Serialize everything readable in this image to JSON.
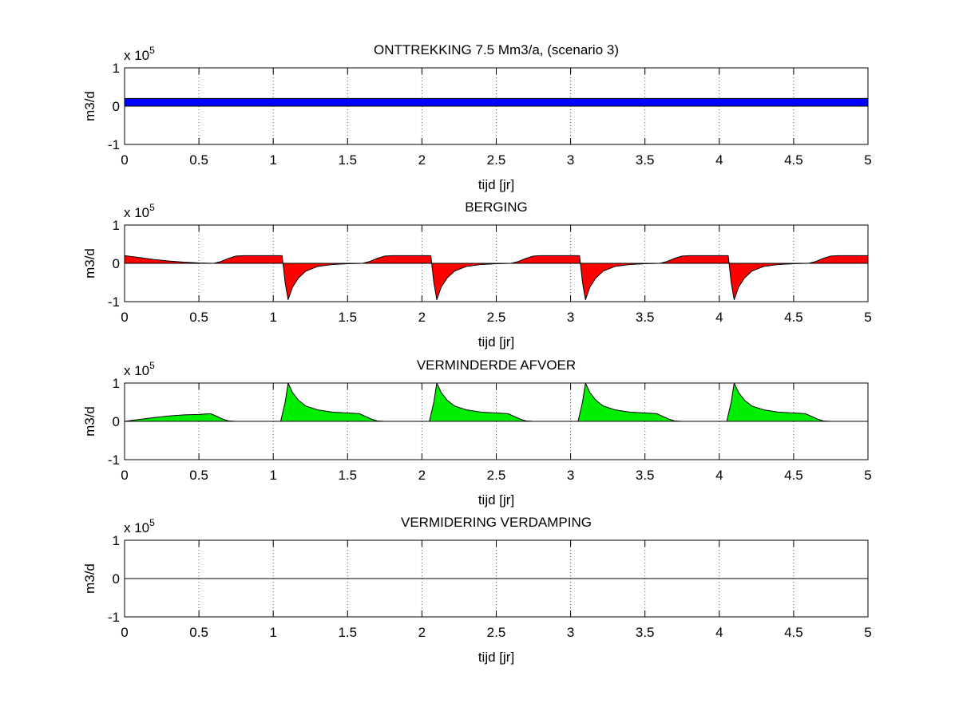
{
  "chart_data": [
    {
      "type": "area",
      "title": "ONTTREKKING 7.5 Mm3/a, (scenario 3)",
      "xlabel": "tijd [jr]",
      "ylabel": "m3/d",
      "y_multiplier": "x 10",
      "y_exponent": "5",
      "xlim": [
        0,
        5
      ],
      "ylim": [
        -1,
        1
      ],
      "xticks": [
        "0",
        "0.5",
        "1",
        "1.5",
        "2",
        "2.5",
        "3",
        "3.5",
        "4",
        "4.5",
        "5"
      ],
      "yticks": [
        "-1",
        "0",
        "1"
      ],
      "grid": true,
      "color": "#0000ff",
      "series": [
        {
          "x": [
            0,
            5,
            5,
            0
          ],
          "y": [
            0.2,
            0.2,
            0.0,
            0.0
          ]
        }
      ]
    },
    {
      "type": "area",
      "title": "BERGING",
      "xlabel": "tijd [jr]",
      "ylabel": "m3/d",
      "y_multiplier": "x 10",
      "y_exponent": "5",
      "xlim": [
        0,
        5
      ],
      "ylim": [
        -1,
        1
      ],
      "xticks": [
        "0",
        "0.5",
        "1",
        "1.5",
        "2",
        "2.5",
        "3",
        "3.5",
        "4",
        "4.5",
        "5"
      ],
      "yticks": [
        "-1",
        "0",
        "1"
      ],
      "grid": true,
      "color": "#ff0000",
      "series": [
        {
          "x": [
            0,
            0.1,
            0.2,
            0.3,
            0.4,
            0.5,
            0.6,
            0.65,
            0.7,
            0.75,
            0.8,
            0.9,
            1.0,
            1.06,
            1.08,
            1.1,
            1.13,
            1.17,
            1.22,
            1.3,
            1.4,
            1.5,
            1.6,
            1.65,
            1.7,
            1.75,
            1.8,
            1.9,
            2.0,
            2.06,
            2.08,
            2.1,
            2.13,
            2.17,
            2.22,
            2.3,
            2.4,
            2.5,
            2.6,
            2.65,
            2.7,
            2.75,
            2.8,
            2.9,
            3.0,
            3.06,
            3.08,
            3.1,
            3.13,
            3.17,
            3.22,
            3.3,
            3.4,
            3.5,
            3.6,
            3.65,
            3.7,
            3.75,
            3.8,
            3.9,
            4.0,
            4.06,
            4.08,
            4.1,
            4.13,
            4.17,
            4.22,
            4.3,
            4.4,
            4.5,
            4.6,
            4.65,
            4.7,
            4.75,
            4.8,
            4.9,
            5.0
          ],
          "y": [
            0.2,
            0.15,
            0.1,
            0.06,
            0.03,
            0.01,
            0.0,
            0.05,
            0.13,
            0.19,
            0.2,
            0.2,
            0.2,
            0.2,
            -0.5,
            -0.95,
            -0.62,
            -0.38,
            -0.2,
            -0.08,
            -0.03,
            -0.01,
            0.0,
            0.05,
            0.13,
            0.19,
            0.2,
            0.2,
            0.2,
            0.2,
            -0.5,
            -0.95,
            -0.62,
            -0.38,
            -0.2,
            -0.08,
            -0.03,
            -0.01,
            0.0,
            0.05,
            0.13,
            0.19,
            0.2,
            0.2,
            0.2,
            0.2,
            -0.5,
            -0.95,
            -0.62,
            -0.38,
            -0.2,
            -0.08,
            -0.03,
            -0.01,
            0.0,
            0.05,
            0.13,
            0.19,
            0.2,
            0.2,
            0.2,
            0.2,
            -0.5,
            -0.95,
            -0.62,
            -0.38,
            -0.2,
            -0.08,
            -0.03,
            -0.01,
            0.0,
            0.05,
            0.13,
            0.19,
            0.2,
            0.2,
            0.2
          ]
        }
      ]
    },
    {
      "type": "area",
      "title": "VERMINDERDE AFVOER",
      "xlabel": "tijd [jr]",
      "ylabel": "m3/d",
      "y_multiplier": "x 10",
      "y_exponent": "5",
      "xlim": [
        0,
        5
      ],
      "ylim": [
        -1,
        1
      ],
      "xticks": [
        "0",
        "0.5",
        "1",
        "1.5",
        "2",
        "2.5",
        "3",
        "3.5",
        "4",
        "4.5",
        "5"
      ],
      "yticks": [
        "-1",
        "0",
        "1"
      ],
      "grid": true,
      "color": "#00ee00",
      "series": [
        {
          "x": [
            0,
            0.1,
            0.2,
            0.3,
            0.4,
            0.5,
            0.58,
            0.62,
            0.66,
            0.7,
            0.75,
            1.0,
            1.05,
            1.08,
            1.1,
            1.13,
            1.17,
            1.22,
            1.3,
            1.4,
            1.5,
            1.58,
            1.62,
            1.66,
            1.7,
            1.75,
            2.0,
            2.05,
            2.08,
            2.1,
            2.13,
            2.17,
            2.22,
            2.3,
            2.4,
            2.5,
            2.58,
            2.62,
            2.66,
            2.7,
            2.75,
            3.0,
            3.05,
            3.08,
            3.1,
            3.13,
            3.17,
            3.22,
            3.3,
            3.4,
            3.5,
            3.58,
            3.62,
            3.66,
            3.7,
            3.75,
            4.0,
            4.05,
            4.08,
            4.1,
            4.13,
            4.17,
            4.22,
            4.3,
            4.4,
            4.5,
            4.58,
            4.62,
            4.66,
            4.7,
            4.75,
            5.0
          ],
          "y": [
            0.0,
            0.05,
            0.1,
            0.14,
            0.17,
            0.18,
            0.2,
            0.13,
            0.06,
            0.01,
            0.0,
            0.0,
            0.0,
            0.5,
            1.0,
            0.75,
            0.55,
            0.4,
            0.3,
            0.24,
            0.22,
            0.2,
            0.13,
            0.06,
            0.01,
            0.0,
            0.0,
            0.0,
            0.5,
            1.0,
            0.75,
            0.55,
            0.4,
            0.3,
            0.24,
            0.22,
            0.2,
            0.13,
            0.06,
            0.01,
            0.0,
            0.0,
            0.0,
            0.5,
            1.0,
            0.75,
            0.55,
            0.4,
            0.3,
            0.24,
            0.22,
            0.2,
            0.13,
            0.06,
            0.01,
            0.0,
            0.0,
            0.0,
            0.5,
            1.0,
            0.75,
            0.55,
            0.4,
            0.3,
            0.24,
            0.22,
            0.2,
            0.13,
            0.06,
            0.01,
            0.0,
            0.0
          ]
        }
      ]
    },
    {
      "type": "line",
      "title": "VERMIDERING VERDAMPING",
      "xlabel": "tijd [jr]",
      "ylabel": "m3/d",
      "y_multiplier": "x 10",
      "y_exponent": "5",
      "xlim": [
        0,
        5
      ],
      "ylim": [
        -1,
        1
      ],
      "xticks": [
        "0",
        "0.5",
        "1",
        "1.5",
        "2",
        "2.5",
        "3",
        "3.5",
        "4",
        "4.5",
        "5"
      ],
      "yticks": [
        "-1",
        "0",
        "1"
      ],
      "grid": true,
      "color": "#000000",
      "series": [
        {
          "x": [
            0,
            5
          ],
          "y": [
            0,
            0
          ]
        }
      ]
    }
  ]
}
